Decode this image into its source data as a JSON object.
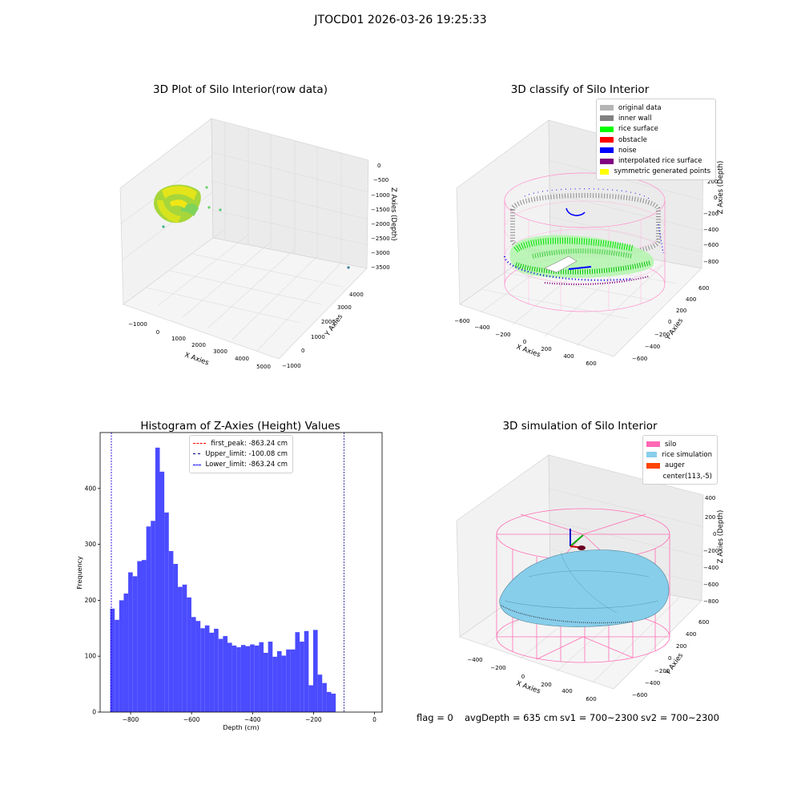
{
  "title": "JTOCD01 2026-03-26 19:25:33",
  "panels": {
    "raw": {
      "title": "3D Plot of Silo Interior(row data)",
      "xlabel": "X Axies",
      "ylabel": "Y Axies",
      "zlabel": "Z Axies (Depth)",
      "xticks": [
        "−1000",
        "0",
        "1000",
        "2000",
        "3000",
        "4000",
        "5000"
      ],
      "yticks": [
        "−1000",
        "0",
        "1000",
        "2000",
        "3000",
        "4000"
      ],
      "zticks": [
        "0",
        "−500",
        "−1000",
        "−1500",
        "−2000",
        "−2500",
        "−3000",
        "−3500"
      ]
    },
    "classify": {
      "title": "3D classify of Silo Interior",
      "xlabel": "X Axies",
      "ylabel": "Y Axies",
      "zlabel": "Z Axies (Depth)",
      "xticks": [
        "−600",
        "−400",
        "−200",
        "0",
        "200",
        "400",
        "600"
      ],
      "yticks": [
        "600",
        "400",
        "200",
        "0",
        "−200",
        "−400",
        "−600"
      ],
      "zticks": [
        "200",
        "0",
        "−200",
        "−400",
        "−600",
        "−800"
      ],
      "legend": [
        {
          "label": "original data",
          "color": "#b4b4b4"
        },
        {
          "label": "inner wall",
          "color": "#808080"
        },
        {
          "label": "rice surface",
          "color": "#00ff00"
        },
        {
          "label": "obstacle",
          "color": "#ff0000"
        },
        {
          "label": "noise",
          "color": "#0000ff"
        },
        {
          "label": "interpolated rice surface",
          "color": "#800080"
        },
        {
          "label": "symmetric generated points",
          "color": "#ffff00"
        }
      ]
    },
    "simulation": {
      "title": "3D simulation of Silo Interior",
      "xlabel": "X Axies",
      "ylabel": "Y Axies",
      "zlabel": "Z Axies (Depth)",
      "xticks": [
        "−400",
        "−200",
        "0",
        "200",
        "400",
        "600"
      ],
      "yticks": [
        "600",
        "400",
        "200",
        "0",
        "−200",
        "−400",
        "−600"
      ],
      "zticks": [
        "400",
        "200",
        "0",
        "−200",
        "−400",
        "−600",
        "−800"
      ],
      "legend": [
        {
          "label": "silo",
          "color": "#ff69b4"
        },
        {
          "label": "rice simulation",
          "color": "#87ceeb"
        },
        {
          "label": "auger",
          "color": "#ff4500"
        },
        {
          "label": "center(113,-5)",
          "color": "#ffffff"
        }
      ]
    },
    "footer": {
      "flag": "flag = 0",
      "avg": "avgDepth = 635 cm",
      "sv1": "sv1 = 700~2300",
      "sv2": "sv2 = 700~2300"
    }
  },
  "chart_data": [
    {
      "type": "bar",
      "title": "Histogram of Z-Axies (Height) Values",
      "xlabel": "Depth (cm)",
      "ylabel": "Frequency",
      "bin_start": -867,
      "bin_width": 14.8,
      "values": [
        185,
        165,
        200,
        212,
        250,
        243,
        270,
        272,
        332,
        342,
        473,
        430,
        357,
        288,
        265,
        224,
        228,
        205,
        170,
        163,
        150,
        155,
        142,
        149,
        131,
        136,
        124,
        119,
        116,
        120,
        118,
        121,
        119,
        125,
        106,
        126,
        99,
        109,
        101,
        112,
        112,
        143,
        126,
        145,
        48,
        147,
        67,
        52,
        36,
        33
      ],
      "xlim": [
        -900,
        25
      ],
      "ylim": [
        0,
        500
      ],
      "xticks": [
        -800,
        -600,
        -400,
        -200,
        0
      ],
      "yticks": [
        0,
        100,
        200,
        300,
        400
      ],
      "bar_color": "#4b4bff",
      "lines": [
        {
          "label": "first_peak: -863.24 cm",
          "value": -863.24,
          "color": "#ff0000"
        },
        {
          "label": "Upper_limit: -100.08 cm",
          "value": -100.08,
          "color": "#00008b"
        },
        {
          "label": "Lower_limit: -863.24 cm",
          "value": -863.24,
          "color": "#0000ff"
        }
      ]
    }
  ]
}
